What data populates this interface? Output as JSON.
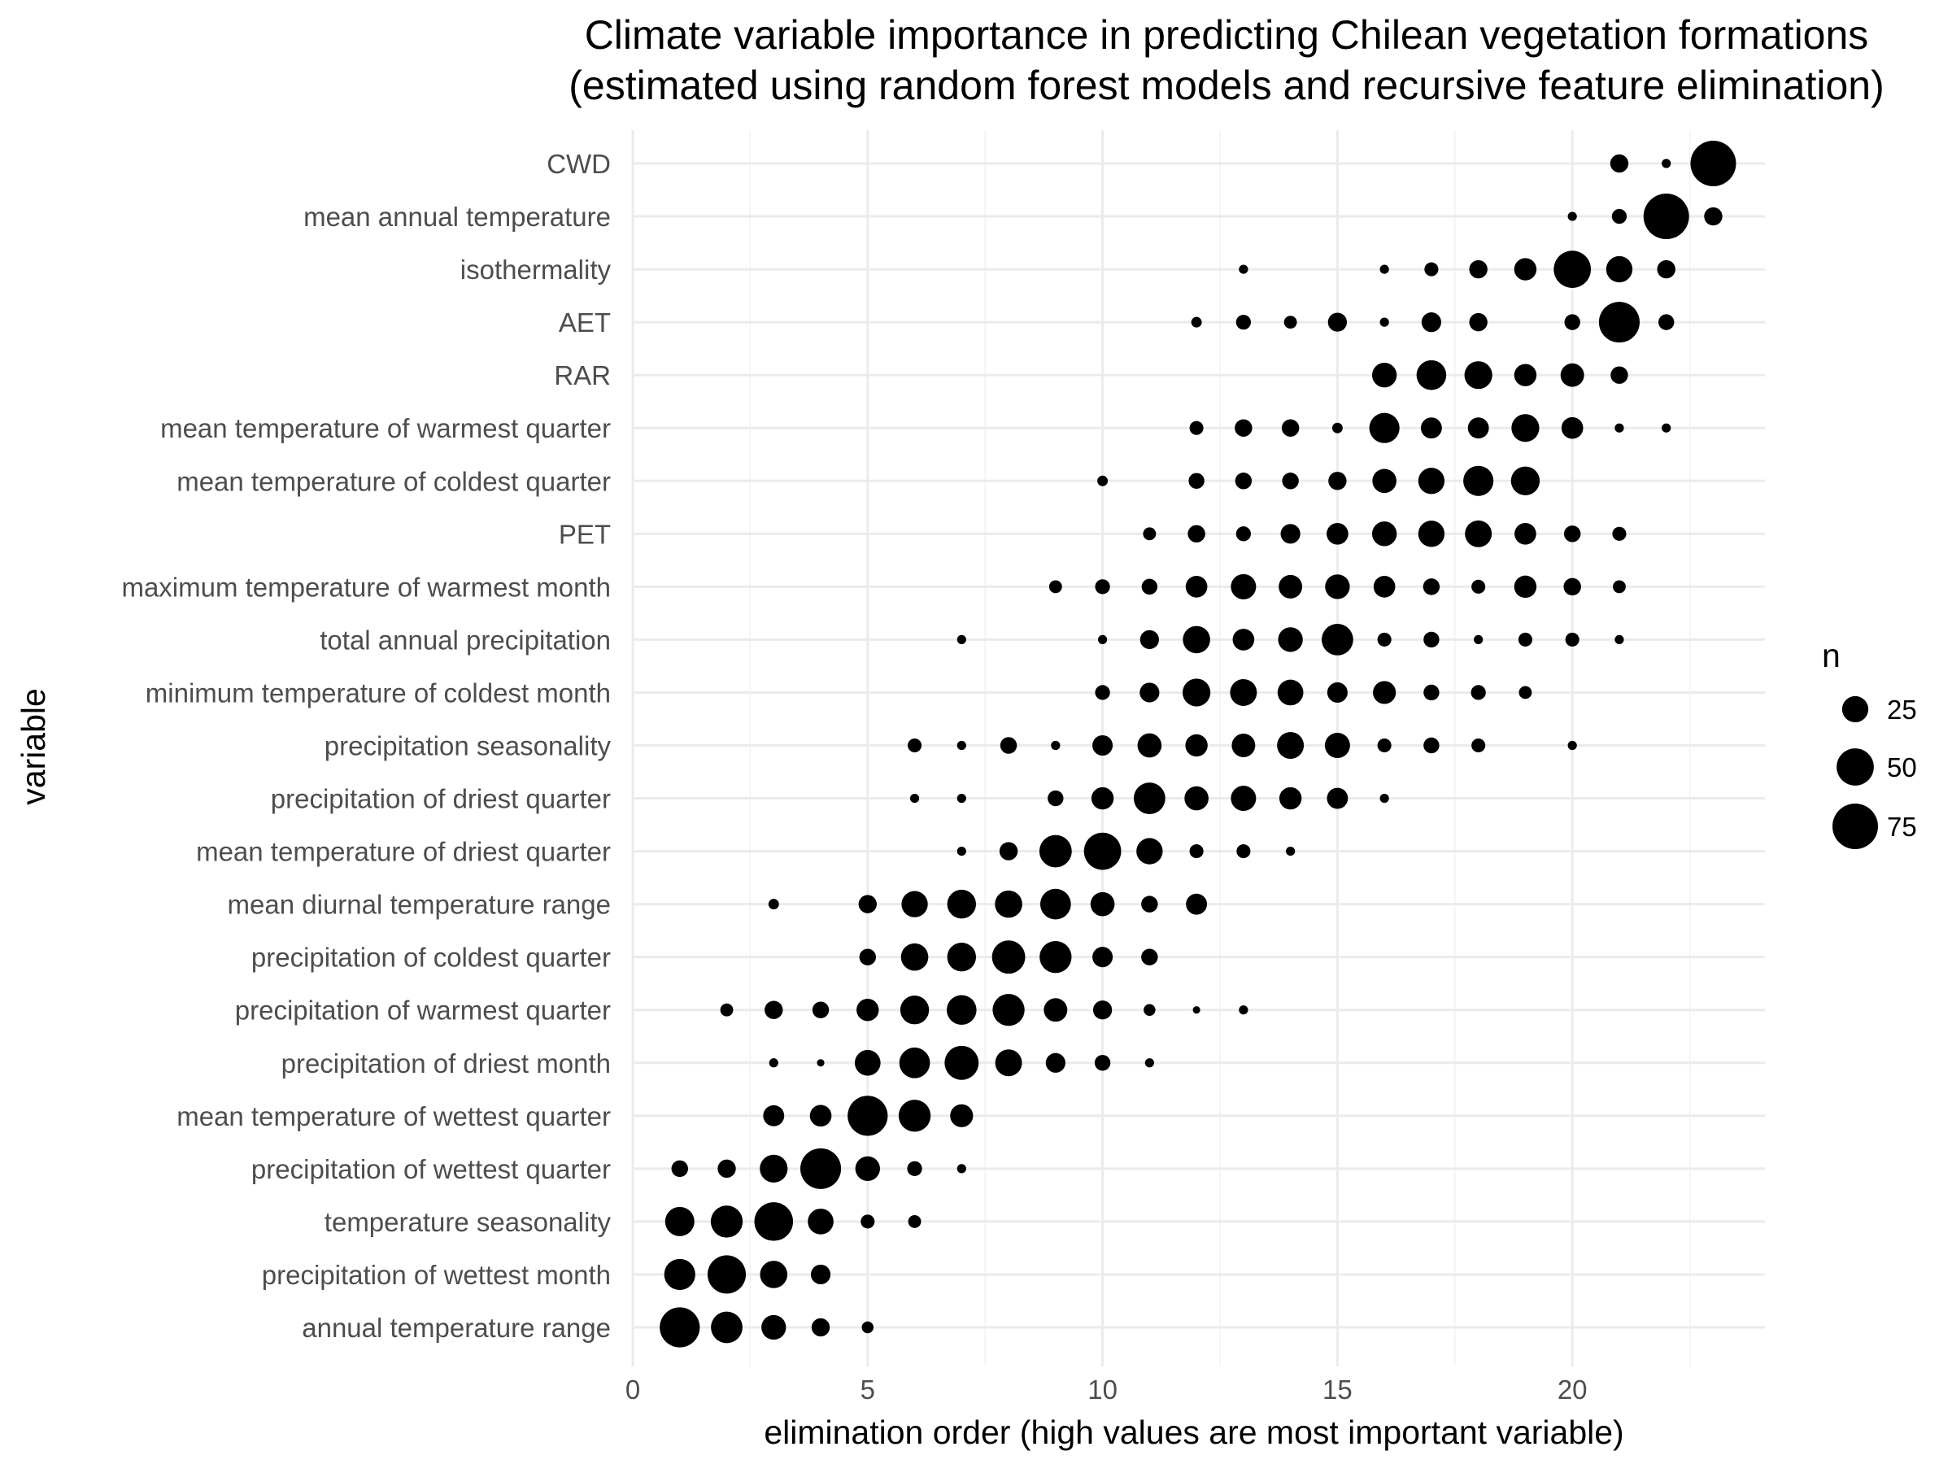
{
  "chart_data": {
    "type": "scatter",
    "title": "Climate variable importance in predicting Chilean vegetation formations",
    "subtitle": "(estimated using random forest models and recursive feature elimination)",
    "xlabel": "elimination order (high values are most important variable)",
    "ylabel": "variable",
    "xlim": [
      0,
      24.1
    ],
    "x_ticks": [
      0,
      5,
      10,
      15,
      20
    ],
    "x_tick_labels": [
      "0",
      "5",
      "10",
      "15",
      "20"
    ],
    "grid": true,
    "legend": {
      "title": "n",
      "position": "right",
      "values": [
        25,
        50,
        75
      ],
      "labels": [
        "25",
        "50",
        "75"
      ]
    },
    "point_color": "#000000",
    "variables": [
      "CWD",
      "mean annual temperature",
      "isothermality",
      "AET",
      "RAR",
      "mean temperature of warmest quarter",
      "mean temperature of coldest quarter",
      "PET",
      "maximum temperature of warmest month",
      "total annual precipitation",
      "minimum temperature of coldest month",
      "precipitation seasonality",
      "precipitation of driest quarter",
      "mean temperature of driest quarter",
      "mean diurnal temperature range",
      "precipitation of coldest quarter",
      "precipitation of warmest quarter",
      "precipitation of driest month",
      "mean temperature of wettest quarter",
      "precipitation of wettest quarter",
      "temperature seasonality",
      "precipitation of wettest month",
      "annual temperature range"
    ],
    "series": [
      {
        "variable": "CWD",
        "x": [
          21,
          22,
          23
        ],
        "n": [
          12,
          3,
          75
        ]
      },
      {
        "variable": "mean annual temperature",
        "x": [
          20,
          21,
          22,
          23
        ],
        "n": [
          3,
          8,
          75,
          12
        ]
      },
      {
        "variable": "isothermality",
        "x": [
          13,
          16,
          17,
          18,
          19,
          20,
          21,
          22
        ],
        "n": [
          3,
          3,
          7,
          12,
          18,
          50,
          25,
          12
        ]
      },
      {
        "variable": "AET",
        "x": [
          12,
          13,
          14,
          15,
          16,
          17,
          18,
          20,
          21,
          22
        ],
        "n": [
          4,
          8,
          6,
          13,
          3,
          14,
          12,
          9,
          60,
          9
        ]
      },
      {
        "variable": "RAR",
        "x": [
          16,
          17,
          18,
          19,
          20,
          21
        ],
        "n": [
          22,
          32,
          28,
          18,
          20,
          11
        ]
      },
      {
        "variable": "mean temperature of warmest quarter",
        "x": [
          12,
          13,
          14,
          15,
          16,
          17,
          18,
          19,
          20,
          21,
          22
        ],
        "n": [
          7,
          11,
          11,
          4,
          33,
          16,
          16,
          28,
          17,
          3,
          3
        ]
      },
      {
        "variable": "mean temperature of coldest quarter",
        "x": [
          10,
          12,
          13,
          14,
          15,
          16,
          17,
          18,
          19
        ],
        "n": [
          4,
          9,
          10,
          10,
          12,
          21,
          25,
          33,
          30
        ]
      },
      {
        "variable": "PET",
        "x": [
          11,
          12,
          13,
          14,
          15,
          16,
          17,
          18,
          19,
          20,
          21
        ],
        "n": [
          6,
          11,
          8,
          14,
          17,
          22,
          25,
          26,
          17,
          10,
          7
        ]
      },
      {
        "variable": "maximum temperature of warmest month",
        "x": [
          9,
          10,
          11,
          12,
          13,
          14,
          15,
          16,
          17,
          18,
          19,
          20,
          21
        ],
        "n": [
          6,
          8,
          9,
          17,
          23,
          20,
          22,
          17,
          10,
          7,
          18,
          11,
          6
        ]
      },
      {
        "variable": "total annual precipitation",
        "x": [
          7,
          10,
          11,
          12,
          13,
          14,
          15,
          16,
          17,
          18,
          19,
          20,
          21
        ],
        "n": [
          3,
          3,
          13,
          27,
          17,
          22,
          36,
          7,
          9,
          3,
          7,
          7,
          3
        ]
      },
      {
        "variable": "minimum temperature of coldest month",
        "x": [
          10,
          11,
          12,
          13,
          14,
          15,
          16,
          17,
          18,
          19
        ],
        "n": [
          8,
          14,
          28,
          26,
          24,
          15,
          19,
          9,
          8,
          6
        ]
      },
      {
        "variable": "precipitation seasonality",
        "x": [
          6,
          7,
          8,
          9,
          10,
          11,
          12,
          13,
          14,
          15,
          16,
          17,
          18,
          20
        ],
        "n": [
          7,
          3,
          10,
          3,
          15,
          21,
          18,
          20,
          26,
          23,
          7,
          9,
          7,
          3
        ]
      },
      {
        "variable": "precipitation of driest quarter",
        "x": [
          6,
          7,
          9,
          10,
          11,
          12,
          13,
          14,
          15,
          16
        ],
        "n": [
          3,
          3,
          9,
          18,
          36,
          21,
          23,
          18,
          16,
          3
        ]
      },
      {
        "variable": "mean temperature of driest quarter",
        "x": [
          7,
          8,
          9,
          10,
          11,
          12,
          13,
          14
        ],
        "n": [
          3,
          12,
          38,
          50,
          25,
          7,
          7,
          3
        ]
      },
      {
        "variable": "mean diurnal temperature range",
        "x": [
          3,
          5,
          6,
          7,
          8,
          9,
          10,
          11,
          12
        ],
        "n": [
          4,
          12,
          25,
          30,
          27,
          34,
          21,
          10,
          16
        ]
      },
      {
        "variable": "precipitation of coldest quarter",
        "x": [
          5,
          6,
          7,
          8,
          9,
          10,
          11
        ],
        "n": [
          10,
          27,
          30,
          40,
          37,
          15,
          10
        ]
      },
      {
        "variable": "precipitation of warmest quarter",
        "x": [
          2,
          3,
          4,
          5,
          6,
          7,
          8,
          9,
          10,
          11,
          12,
          13
        ],
        "n": [
          6,
          12,
          10,
          18,
          30,
          32,
          37,
          20,
          13,
          5,
          2,
          3
        ]
      },
      {
        "variable": "precipitation of driest month",
        "x": [
          3,
          4,
          5,
          6,
          7,
          8,
          9,
          10,
          11
        ],
        "n": [
          3,
          2,
          24,
          34,
          42,
          26,
          14,
          9,
          3
        ]
      },
      {
        "variable": "mean temperature of wettest quarter",
        "x": [
          3,
          4,
          5,
          6,
          7
        ],
        "n": [
          16,
          17,
          58,
          37,
          19
        ]
      },
      {
        "variable": "precipitation of wettest quarter",
        "x": [
          1,
          2,
          3,
          4,
          5,
          6,
          7
        ],
        "n": [
          10,
          12,
          28,
          60,
          22,
          8,
          3
        ]
      },
      {
        "variable": "temperature seasonality",
        "x": [
          1,
          2,
          3,
          4,
          5,
          6
        ],
        "n": [
          31,
          37,
          54,
          24,
          7,
          6
        ]
      },
      {
        "variable": "precipitation of wettest month",
        "x": [
          1,
          2,
          3,
          4
        ],
        "n": [
          35,
          53,
          27,
          14
        ]
      },
      {
        "variable": "annual temperature range",
        "x": [
          1,
          2,
          3,
          4,
          5
        ],
        "n": [
          58,
          36,
          22,
          12,
          5
        ]
      }
    ]
  }
}
